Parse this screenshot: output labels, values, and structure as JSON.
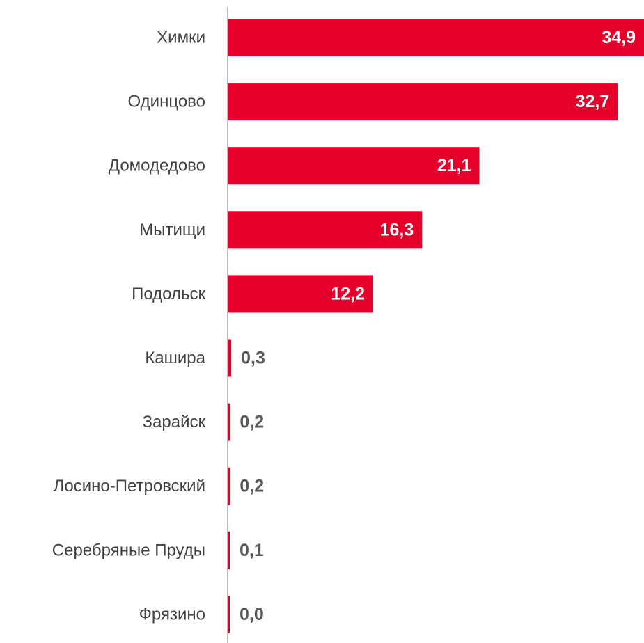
{
  "chart_data": {
    "type": "bar",
    "orientation": "horizontal",
    "categories": [
      "Химки",
      "Одинцово",
      "Домодедово",
      "Мытищи",
      "Подольск",
      "Кашира",
      "Зарайск",
      "Лосино-Петровский",
      "Серебряные Пруды",
      "Фрязино"
    ],
    "values": [
      34.9,
      32.7,
      21.1,
      16.3,
      12.2,
      0.3,
      0.2,
      0.2,
      0.1,
      0.0
    ],
    "value_labels": [
      "34,9",
      "32,7",
      "21,1",
      "16,3",
      "12,2",
      "0,3",
      "0,2",
      "0,2",
      "0,1",
      "0,0"
    ],
    "xlim": [
      0,
      34.9
    ],
    "grid": false,
    "legend": "none",
    "colors": {
      "bar": "#e4002b",
      "label_inside": "#ffffff",
      "label_outside": "#595959",
      "category_label": "#404040",
      "axis": "#a6a6a6"
    }
  }
}
